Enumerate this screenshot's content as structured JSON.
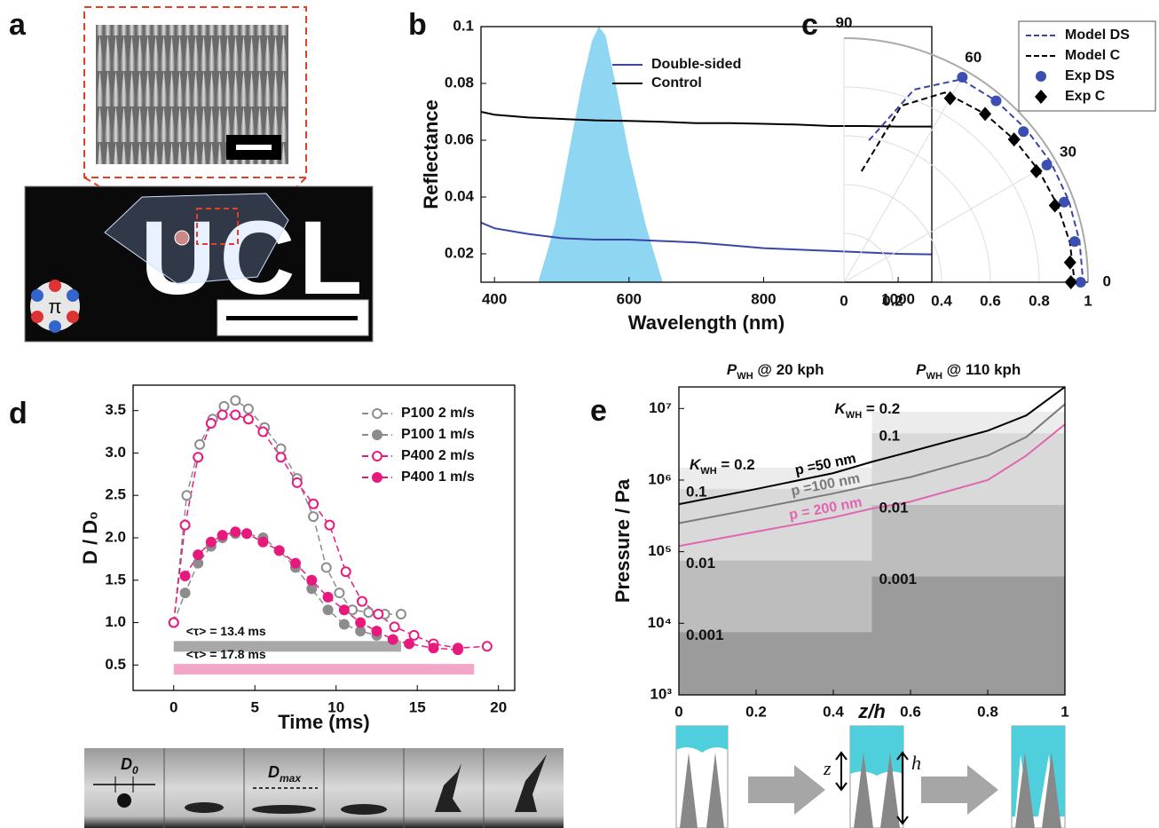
{
  "panel_labels": [
    "a",
    "b",
    "c",
    "d",
    "e"
  ],
  "panel_a": {
    "photo_text": "UCL",
    "logo_text": "π"
  },
  "panel_d_images": {
    "d0": {
      "text": "D",
      "sub": "0"
    },
    "dmax": {
      "text": "D",
      "sub": "max"
    }
  },
  "panel_e_schematic": {
    "z": "z",
    "h": "h"
  },
  "chart_data": [
    {
      "type": "line",
      "xlabel": "Wavelength (nm)",
      "ylabel": "Reflectance",
      "xlim": [
        380,
        1050
      ],
      "ylim": [
        0.01,
        0.1
      ],
      "xticks": [
        400,
        600,
        800,
        1000
      ],
      "yticks": [
        0.02,
        0.04,
        0.06,
        0.08,
        0.1
      ],
      "legend": "upper right",
      "band": {
        "color": "#8fd6f2",
        "x": [
          465,
          490,
          510,
          530,
          545,
          555,
          565,
          580,
          600,
          625,
          650
        ],
        "values": [
          0.01,
          0.03,
          0.055,
          0.08,
          0.095,
          0.1,
          0.097,
          0.08,
          0.055,
          0.03,
          0.01
        ]
      },
      "series": [
        {
          "name": "Double-sided",
          "color": "#3a45a8",
          "x": [
            380,
            400,
            450,
            500,
            550,
            600,
            650,
            700,
            750,
            800,
            850,
            900,
            950,
            1000,
            1050
          ],
          "values": [
            0.031,
            0.029,
            0.027,
            0.0255,
            0.025,
            0.025,
            0.0245,
            0.024,
            0.023,
            0.022,
            0.0215,
            0.021,
            0.0205,
            0.02,
            0.0198
          ]
        },
        {
          "name": "Control",
          "color": "#000000",
          "x": [
            380,
            400,
            450,
            500,
            550,
            600,
            650,
            700,
            750,
            800,
            850,
            900,
            950,
            1000,
            1050
          ],
          "values": [
            0.07,
            0.069,
            0.068,
            0.0675,
            0.067,
            0.0668,
            0.0665,
            0.066,
            0.066,
            0.0658,
            0.0655,
            0.065,
            0.065,
            0.0648,
            0.0648
          ]
        }
      ]
    },
    {
      "type": "polar",
      "xlim": [
        0,
        1
      ],
      "xticks": [
        0,
        0.2,
        0.4,
        0.6,
        0.8,
        1
      ],
      "thetaticks": [
        0,
        30,
        60,
        90
      ],
      "legend": "upper right",
      "series": [
        {
          "name": "Model DS",
          "color": "#3a45a8",
          "style": "dashed",
          "theta": [
            80,
            70,
            60,
            50,
            40,
            30,
            20,
            10,
            0
          ],
          "values": [
            0.59,
            0.84,
            0.96,
            0.97,
            0.975,
            0.98,
            0.98,
            0.98,
            0.98
          ]
        },
        {
          "name": "Model C",
          "color": "#000000",
          "style": "dashed",
          "theta": [
            81,
            72,
            62,
            50,
            40,
            30,
            20,
            10,
            0
          ],
          "values": [
            0.46,
            0.76,
            0.88,
            0.9,
            0.91,
            0.92,
            0.93,
            0.94,
            0.945
          ]
        },
        {
          "name": "Exp DS",
          "color": "#3b4fb3",
          "marker": "circle",
          "theta": [
            0,
            10,
            20,
            30,
            40,
            50,
            60
          ],
          "values": [
            0.97,
            0.96,
            0.96,
            0.96,
            0.96,
            0.97,
            0.97
          ]
        },
        {
          "name": "Exp C",
          "color": "#000000",
          "marker": "diamond",
          "theta": [
            0,
            5,
            20,
            30,
            40,
            50,
            60
          ],
          "values": [
            0.93,
            0.93,
            0.92,
            0.91,
            0.91,
            0.9,
            0.87
          ]
        }
      ]
    },
    {
      "type": "line",
      "xlabel": "Time (ms)",
      "ylabel": "D / D₀",
      "xlim": [
        -2.5,
        21
      ],
      "ylim": [
        0.2,
        3.8
      ],
      "xticks": [
        0,
        5,
        10,
        15,
        20
      ],
      "yticks": [
        0.5,
        {
          "value": 1,
          "label": "1.0"
        },
        1.5,
        {
          "value": 2,
          "label": "2.0"
        },
        2.5,
        {
          "value": 3,
          "label": "3.0"
        },
        3.5
      ],
      "legend": "upper right",
      "ranges": [
        {
          "label": "<τ> = 13.4 ms",
          "x": [
            0,
            14
          ],
          "y": 0.72,
          "color": "#a8a8a8"
        },
        {
          "label": "<τ> = 17.8 ms",
          "x": [
            0,
            18.5
          ],
          "y": 0.45,
          "color": "#f2a7c9"
        }
      ],
      "series": [
        {
          "name": "P100 2 m/s",
          "color": "#8c8c8c",
          "marker": "open",
          "dash": true,
          "x": [
            0,
            0.8,
            1.6,
            2.4,
            3.1,
            3.8,
            4.6,
            5.6,
            6.6,
            7.6,
            8.6,
            9.4,
            10.2,
            11,
            12,
            13,
            14
          ],
          "values": [
            1.0,
            2.5,
            3.1,
            3.4,
            3.55,
            3.62,
            3.52,
            3.3,
            3.05,
            2.7,
            2.25,
            1.65,
            1.35,
            1.15,
            1.12,
            1.1,
            1.1
          ]
        },
        {
          "name": "P100 1 m/s",
          "color": "#8c8c8c",
          "marker": "filled",
          "dash": true,
          "x": [
            0,
            0.7,
            1.5,
            2.3,
            3,
            3.8,
            4.5,
            5.5,
            6.5,
            7.5,
            8.5,
            9.5,
            10.5,
            11.5,
            12.5
          ],
          "values": [
            1.0,
            1.35,
            1.7,
            1.9,
            2.0,
            2.05,
            2.05,
            2.0,
            1.85,
            1.65,
            1.4,
            1.15,
            0.98,
            0.9,
            0.85
          ]
        },
        {
          "name": "P400 2 m/s",
          "color": "#e8197d",
          "marker": "open",
          "dash": true,
          "x": [
            0,
            0.7,
            1.5,
            2.3,
            3,
            3.8,
            4.6,
            5.5,
            6.6,
            7.6,
            8.6,
            9.6,
            10.6,
            11.6,
            12.6,
            13.6,
            14.8,
            16,
            17.5,
            19.3
          ],
          "values": [
            1.0,
            2.15,
            2.95,
            3.35,
            3.45,
            3.45,
            3.4,
            3.25,
            2.95,
            2.65,
            2.4,
            2.15,
            1.6,
            1.25,
            1.1,
            0.95,
            0.85,
            0.75,
            0.7,
            0.72
          ]
        },
        {
          "name": "P400 1 m/s",
          "color": "#e8197d",
          "marker": "filled",
          "dash": true,
          "x": [
            0.7,
            1.5,
            2.3,
            3,
            3.8,
            4.5,
            5.5,
            6.5,
            7.5,
            8.5,
            9.5,
            10.5,
            11.5,
            12.5,
            13.5,
            14.5,
            16,
            17.5
          ],
          "values": [
            1.55,
            1.8,
            1.95,
            2.03,
            2.07,
            2.05,
            1.95,
            1.85,
            1.7,
            1.5,
            1.3,
            1.15,
            1.0,
            0.9,
            0.8,
            0.75,
            0.7,
            0.68
          ]
        }
      ]
    },
    {
      "type": "line",
      "log_y": true,
      "line_labels": true,
      "xlabel": "z/h",
      "ylabel": "Pressure / Pa",
      "xlim": [
        0,
        1
      ],
      "ylim": [
        1000,
        20000000
      ],
      "xticks": [
        0,
        0.2,
        0.4,
        0.6,
        0.8,
        1
      ],
      "yticks": [
        {
          "value": 1000,
          "label": "10³"
        },
        {
          "value": 10000,
          "label": "10⁴"
        },
        {
          "value": 100000,
          "label": "10⁵"
        },
        {
          "value": 1000000,
          "label": "10⁶"
        },
        {
          "value": 10000000,
          "label": "10⁷"
        }
      ],
      "top_labels": [
        {
          "text": "P",
          "sub": "WH",
          "rest": " @ 20 kph"
        },
        {
          "text": "P",
          "sub": "WH",
          "rest": " @ 110 kph"
        }
      ],
      "kwh_label": {
        "text": "K",
        "sub": "WH",
        "rest": " = "
      },
      "region_colors": [
        "#ececec",
        "#d9d9d9",
        "#bdbdbd",
        "#9b9b9b"
      ],
      "regions": [
        {
          "label": "0.2",
          "x": [
            0,
            0.5
          ],
          "top": 1500000
        },
        {
          "label": "0.1",
          "x": [
            0,
            0.5
          ],
          "top": 750000
        },
        {
          "label": "0.01",
          "x": [
            0,
            0.5
          ],
          "top": 75000
        },
        {
          "label": "0.001",
          "x": [
            0,
            0.5
          ],
          "top": 7500
        },
        {
          "label": "0.2",
          "x": [
            0.5,
            1
          ],
          "top": 9000000
        },
        {
          "label": "0.1",
          "x": [
            0.5,
            1
          ],
          "top": 4500000
        },
        {
          "label": "0.01",
          "x": [
            0.5,
            1
          ],
          "top": 450000
        },
        {
          "label": "0.001",
          "x": [
            0.5,
            1
          ],
          "top": 45000
        }
      ],
      "series": [
        {
          "name": "p =50 nm",
          "color": "#000000",
          "x": [
            0,
            0.2,
            0.4,
            0.5,
            0.6,
            0.8,
            0.9,
            1
          ],
          "values": [
            460000,
            750000,
            1250000,
            1800000,
            2500000,
            4900000,
            8000000,
            20000000
          ]
        },
        {
          "name": "p =100 nm",
          "color": "#7a7a7a",
          "x": [
            0,
            0.2,
            0.4,
            0.5,
            0.6,
            0.8,
            0.9,
            1
          ],
          "values": [
            250000,
            400000,
            650000,
            850000,
            1100000,
            2200000,
            4000000,
            11500000
          ]
        },
        {
          "name": "p = 200 nm",
          "color": "#e066b0",
          "x": [
            0,
            0.2,
            0.4,
            0.5,
            0.6,
            0.8,
            0.9,
            1
          ],
          "values": [
            120000,
            190000,
            300000,
            400000,
            500000,
            1000000,
            2200000,
            6000000
          ]
        }
      ]
    }
  ]
}
